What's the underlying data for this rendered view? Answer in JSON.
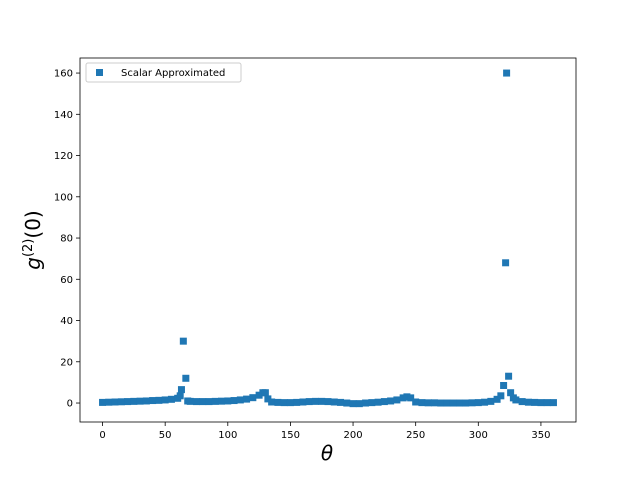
{
  "chart_data": {
    "type": "scatter",
    "xlabel": "θ",
    "ylabel": {
      "base": "g",
      "sup": "(2)",
      "rest": "(0)"
    },
    "xlim": [
      -18,
      378
    ],
    "ylim": [
      -9.2,
      167.3
    ],
    "xticks": [
      0,
      50,
      100,
      150,
      200,
      250,
      300,
      350
    ],
    "yticks": [
      0,
      20,
      40,
      60,
      80,
      100,
      120,
      140,
      160
    ],
    "legend": "upper left",
    "series": [
      {
        "name": "Scalar Approximated",
        "color": "#1f77b4",
        "x": [
          0,
          5,
          10,
          15,
          20,
          25,
          30,
          35,
          40,
          45,
          50,
          55,
          60,
          62,
          63,
          64.5,
          66.5,
          68,
          70,
          75,
          80,
          85,
          90,
          95,
          100,
          105,
          110,
          115,
          120,
          125,
          128,
          130,
          132,
          135,
          140,
          145,
          150,
          155,
          160,
          165,
          170,
          175,
          180,
          185,
          190,
          195,
          200,
          205,
          210,
          215,
          220,
          225,
          230,
          235,
          240,
          243,
          246,
          250,
          255,
          260,
          265,
          270,
          275,
          280,
          285,
          290,
          295,
          300,
          305,
          310,
          315,
          318,
          320.2,
          321.8,
          322.6,
          324.2,
          325.8,
          328,
          330,
          335,
          340,
          345,
          350,
          355,
          360
        ],
        "values": [
          0.3,
          0.4,
          0.5,
          0.6,
          0.7,
          0.8,
          0.9,
          1,
          1.2,
          1.3,
          1.5,
          1.8,
          2.3,
          3.5,
          6.5,
          30,
          12,
          1,
          0.8,
          0.7,
          0.7,
          0.7,
          0.8,
          0.9,
          1,
          1.2,
          1.5,
          1.9,
          2.6,
          3.8,
          5,
          5,
          2,
          0.5,
          0.3,
          0.2,
          0.2,
          0.3,
          0.5,
          0.7,
          0.8,
          0.8,
          0.7,
          0.5,
          0.3,
          0,
          -0.3,
          -0.3,
          0,
          0.2,
          0.4,
          0.7,
          1,
          1.5,
          2.5,
          3,
          2.5,
          0.5,
          0.2,
          0.1,
          0.1,
          0,
          0,
          0,
          0,
          0,
          0.1,
          0.2,
          0.4,
          0.8,
          1.8,
          3.5,
          8.5,
          68,
          160,
          13,
          5,
          2.5,
          1.5,
          0.7,
          0.4,
          0.3,
          0.2,
          0.2,
          0.2
        ]
      }
    ]
  }
}
